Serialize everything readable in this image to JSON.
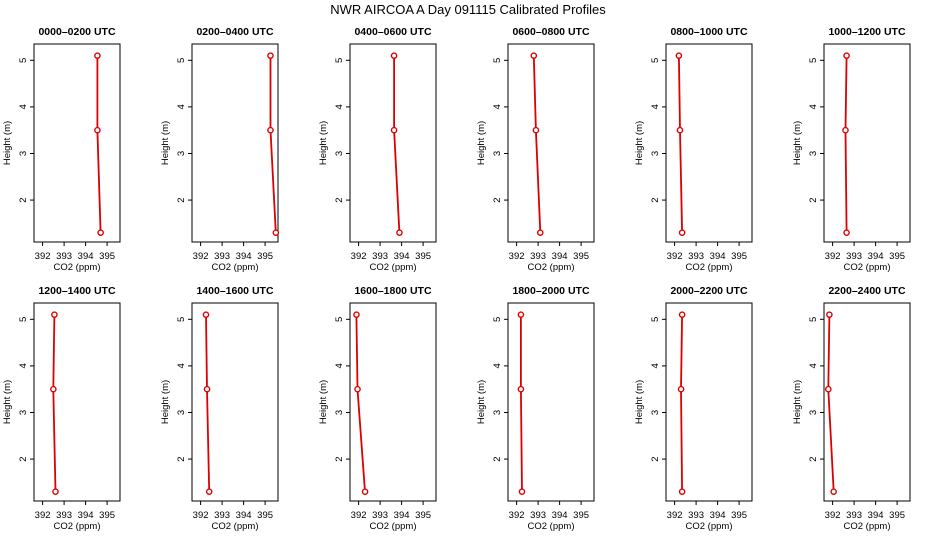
{
  "figure": {
    "suptitle": "NWR AIRCOA A  Day 091115  Calibrated Profiles"
  },
  "colors": {
    "series": "#dd0000",
    "axes": "#000000",
    "background": "#ffffff"
  },
  "chart_data": [
    {
      "type": "line",
      "title": "0000–0200 UTC",
      "xlabel": "CO2 (ppm)",
      "ylabel": "Height (m)",
      "xlim": [
        391.6,
        395.6
      ],
      "ylim": [
        1.1,
        5.35
      ],
      "xticks": [
        "392",
        "393",
        "394",
        "395"
      ],
      "yticks": [
        "2",
        "3",
        "4",
        "5"
      ],
      "x": [
        394.7,
        394.55,
        394.55
      ],
      "y": [
        1.3,
        3.5,
        5.1
      ]
    },
    {
      "type": "line",
      "title": "0200–0400 UTC",
      "xlabel": "CO2 (ppm)",
      "ylabel": "Height (m)",
      "xlim": [
        391.6,
        395.6
      ],
      "ylim": [
        1.1,
        5.35
      ],
      "xticks": [
        "392",
        "393",
        "394",
        "395"
      ],
      "yticks": [
        "2",
        "3",
        "4",
        "5"
      ],
      "x": [
        395.5,
        395.25,
        395.25
      ],
      "y": [
        1.3,
        3.5,
        5.1
      ]
    },
    {
      "type": "line",
      "title": "0400–0600 UTC",
      "xlabel": "CO2 (ppm)",
      "ylabel": "Height (m)",
      "xlim": [
        391.6,
        395.6
      ],
      "ylim": [
        1.1,
        5.35
      ],
      "xticks": [
        "392",
        "393",
        "394",
        "395"
      ],
      "yticks": [
        "2",
        "3",
        "4",
        "5"
      ],
      "x": [
        393.9,
        393.65,
        393.65
      ],
      "y": [
        1.3,
        3.5,
        5.1
      ]
    },
    {
      "type": "line",
      "title": "0600–0800 UTC",
      "xlabel": "CO2 (ppm)",
      "ylabel": "Height (m)",
      "xlim": [
        391.6,
        395.6
      ],
      "ylim": [
        1.1,
        5.35
      ],
      "xticks": [
        "392",
        "393",
        "394",
        "395"
      ],
      "yticks": [
        "2",
        "3",
        "4",
        "5"
      ],
      "x": [
        393.1,
        392.9,
        392.8
      ],
      "y": [
        1.3,
        3.5,
        5.1
      ]
    },
    {
      "type": "line",
      "title": "0800–1000 UTC",
      "xlabel": "CO2 (ppm)",
      "ylabel": "Height (m)",
      "xlim": [
        391.6,
        395.6
      ],
      "ylim": [
        1.1,
        5.35
      ],
      "xticks": [
        "392",
        "393",
        "394",
        "395"
      ],
      "yticks": [
        "2",
        "3",
        "4",
        "5"
      ],
      "x": [
        392.35,
        392.25,
        392.2
      ],
      "y": [
        1.3,
        3.5,
        5.1
      ]
    },
    {
      "type": "line",
      "title": "1000–1200 UTC",
      "xlabel": "CO2 (ppm)",
      "ylabel": "Height (m)",
      "xlim": [
        391.6,
        395.6
      ],
      "ylim": [
        1.1,
        5.35
      ],
      "xticks": [
        "392",
        "393",
        "394",
        "395"
      ],
      "yticks": [
        "2",
        "3",
        "4",
        "5"
      ],
      "x": [
        392.65,
        392.6,
        392.65
      ],
      "y": [
        1.3,
        3.5,
        5.1
      ]
    },
    {
      "type": "line",
      "title": "1200–1400 UTC",
      "xlabel": "CO2 (ppm)",
      "ylabel": "Height (m)",
      "xlim": [
        391.6,
        395.6
      ],
      "ylim": [
        1.1,
        5.35
      ],
      "xticks": [
        "392",
        "393",
        "394",
        "395"
      ],
      "yticks": [
        "2",
        "3",
        "4",
        "5"
      ],
      "x": [
        392.6,
        392.5,
        392.55
      ],
      "y": [
        1.3,
        3.5,
        5.1
      ]
    },
    {
      "type": "line",
      "title": "1400–1600 UTC",
      "xlabel": "CO2 (ppm)",
      "ylabel": "Height (m)",
      "xlim": [
        391.6,
        395.6
      ],
      "ylim": [
        1.1,
        5.35
      ],
      "xticks": [
        "392",
        "393",
        "394",
        "395"
      ],
      "yticks": [
        "2",
        "3",
        "4",
        "5"
      ],
      "x": [
        392.4,
        392.3,
        392.25
      ],
      "y": [
        1.3,
        3.5,
        5.1
      ]
    },
    {
      "type": "line",
      "title": "1600–1800 UTC",
      "xlabel": "CO2 (ppm)",
      "ylabel": "Height (m)",
      "xlim": [
        391.6,
        395.6
      ],
      "ylim": [
        1.1,
        5.35
      ],
      "xticks": [
        "392",
        "393",
        "394",
        "395"
      ],
      "yticks": [
        "2",
        "3",
        "4",
        "5"
      ],
      "x": [
        392.3,
        391.95,
        391.9
      ],
      "y": [
        1.3,
        3.5,
        5.1
      ]
    },
    {
      "type": "line",
      "title": "1800–2000 UTC",
      "xlabel": "CO2 (ppm)",
      "ylabel": "Height (m)",
      "xlim": [
        391.6,
        395.6
      ],
      "ylim": [
        1.1,
        5.35
      ],
      "xticks": [
        "392",
        "393",
        "394",
        "395"
      ],
      "yticks": [
        "2",
        "3",
        "4",
        "5"
      ],
      "x": [
        392.25,
        392.2,
        392.2
      ],
      "y": [
        1.3,
        3.5,
        5.1
      ]
    },
    {
      "type": "line",
      "title": "2000–2200 UTC",
      "xlabel": "CO2 (ppm)",
      "ylabel": "Height (m)",
      "xlim": [
        391.6,
        395.6
      ],
      "ylim": [
        1.1,
        5.35
      ],
      "xticks": [
        "392",
        "393",
        "394",
        "395"
      ],
      "yticks": [
        "2",
        "3",
        "4",
        "5"
      ],
      "x": [
        392.35,
        392.3,
        392.35
      ],
      "y": [
        1.3,
        3.5,
        5.1
      ]
    },
    {
      "type": "line",
      "title": "2200–2400 UTC",
      "xlabel": "CO2 (ppm)",
      "ylabel": "Height (m)",
      "xlim": [
        391.6,
        395.6
      ],
      "ylim": [
        1.1,
        5.35
      ],
      "xticks": [
        "392",
        "393",
        "394",
        "395"
      ],
      "yticks": [
        "2",
        "3",
        "4",
        "5"
      ],
      "x": [
        392.05,
        391.8,
        391.85
      ],
      "y": [
        1.3,
        3.5,
        5.1
      ]
    }
  ]
}
